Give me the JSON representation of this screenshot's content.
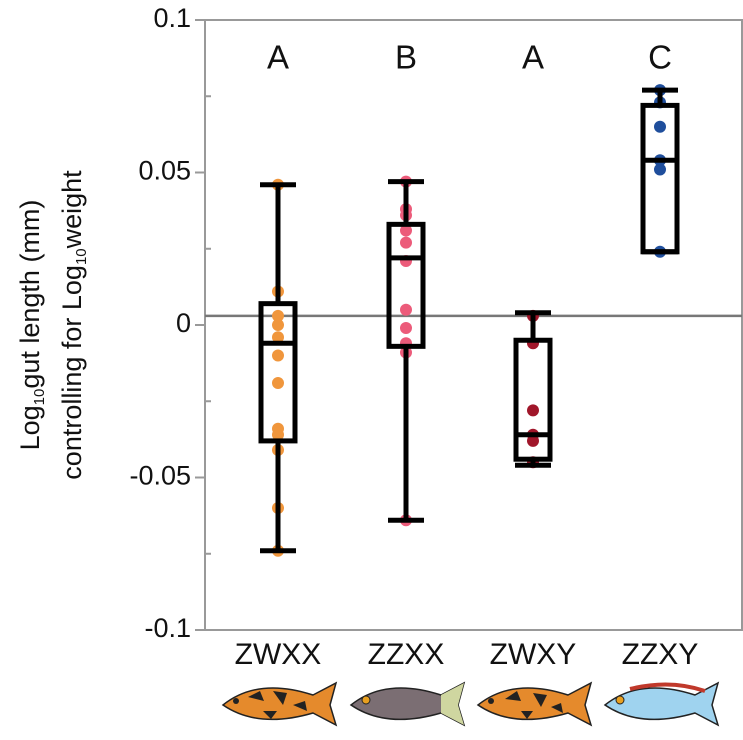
{
  "chart_data": {
    "type": "box",
    "y_label": {
      "line1": [
        "Log",
        "10",
        "gut length (mm)"
      ],
      "line2": [
        "controlling for Log",
        "10",
        "weight"
      ]
    },
    "categories": [
      "ZWXX",
      "ZZXX",
      "ZWXY",
      "ZZXY"
    ],
    "letters": [
      "A",
      "B",
      "A",
      "C"
    ],
    "colors": [
      "#f0963c",
      "#ec5b7a",
      "#a0162a",
      "#1f4e9c"
    ],
    "boxes": [
      {
        "whislo": -0.074,
        "q1": -0.038,
        "med": -0.006,
        "q3": 0.007,
        "whishi": 0.046
      },
      {
        "whislo": -0.064,
        "q1": -0.007,
        "med": 0.022,
        "q3": 0.033,
        "whishi": 0.047
      },
      {
        "whislo": -0.046,
        "q1": -0.044,
        "med": -0.036,
        "q3": -0.005,
        "whishi": 0.004
      },
      {
        "whislo": 0.024,
        "q1": 0.024,
        "med": 0.054,
        "q3": 0.072,
        "whishi": 0.077
      }
    ],
    "points": [
      [
        0.046,
        0.011,
        0.003,
        0,
        -0.004,
        -0.01,
        -0.019,
        -0.034,
        -0.036,
        -0.041,
        -0.06,
        -0.074
      ],
      [
        0.047,
        0.038,
        0.036,
        0.031,
        0.027,
        0.021,
        0.005,
        -0.001,
        -0.006,
        -0.009,
        -0.064
      ],
      [
        0.003,
        -0.006,
        -0.028,
        -0.036,
        -0.038,
        -0.045
      ],
      [
        0.077,
        0.073,
        0.065,
        0.054,
        0.051,
        0.024
      ]
    ],
    "hline": 0.003,
    "ylim": [
      -0.1,
      0.1
    ],
    "yticks": [
      -0.1,
      -0.05,
      0,
      0.05,
      0.1
    ],
    "minor_yticks": [
      -0.075,
      -0.025,
      0.025,
      0.075
    ]
  }
}
